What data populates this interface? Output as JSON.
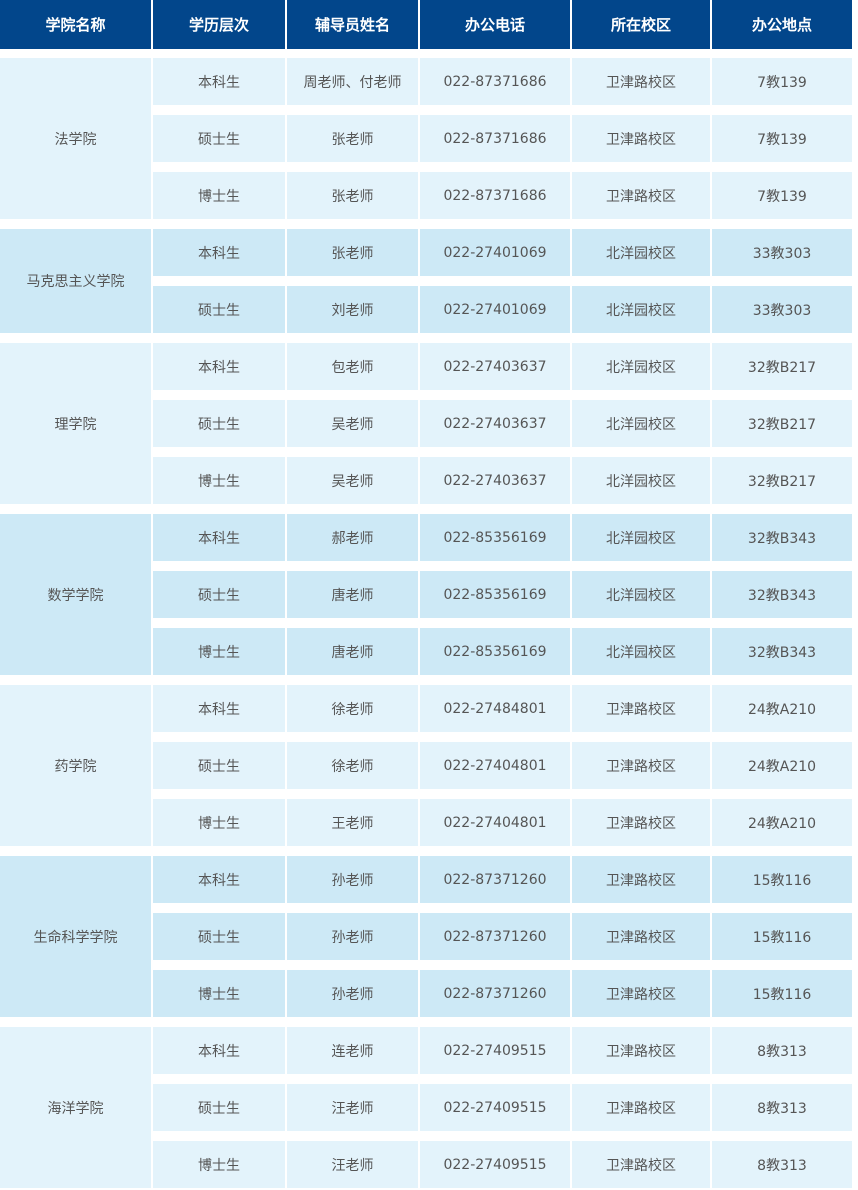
{
  "headers": [
    "学院名称",
    "学历层次",
    "辅导员姓名",
    "办公电话",
    "所在校区",
    "办公地点"
  ],
  "colors": {
    "header_bg": "#02468b",
    "row_light": "#e3f3fb",
    "row_dark": "#cde9f6"
  },
  "groups": [
    {
      "college": "法学院",
      "rows": [
        [
          "本科生",
          "周老师、付老师",
          "022-87371686",
          "卫津路校区",
          "7教139"
        ],
        [
          "硕士生",
          "张老师",
          "022-87371686",
          "卫津路校区",
          "7教139"
        ],
        [
          "博士生",
          "张老师",
          "022-87371686",
          "卫津路校区",
          "7教139"
        ]
      ]
    },
    {
      "college": "马克思主义学院",
      "rows": [
        [
          "本科生",
          "张老师",
          "022-27401069",
          "北洋园校区",
          "33教303"
        ],
        [
          "硕士生",
          "刘老师",
          "022-27401069",
          "北洋园校区",
          "33教303"
        ]
      ]
    },
    {
      "college": "理学院",
      "rows": [
        [
          "本科生",
          "包老师",
          "022-27403637",
          "北洋园校区",
          "32教B217"
        ],
        [
          "硕士生",
          "吴老师",
          "022-27403637",
          "北洋园校区",
          "32教B217"
        ],
        [
          "博士生",
          "吴老师",
          "022-27403637",
          "北洋园校区",
          "32教B217"
        ]
      ]
    },
    {
      "college": "数学学院",
      "rows": [
        [
          "本科生",
          "郝老师",
          "022-85356169",
          "北洋园校区",
          "32教B343"
        ],
        [
          "硕士生",
          "唐老师",
          "022-85356169",
          "北洋园校区",
          "32教B343"
        ],
        [
          "博士生",
          "唐老师",
          "022-85356169",
          "北洋园校区",
          "32教B343"
        ]
      ]
    },
    {
      "college": "药学院",
      "rows": [
        [
          "本科生",
          "徐老师",
          "022-27484801",
          "卫津路校区",
          "24教A210"
        ],
        [
          "硕士生",
          "徐老师",
          "022-27404801",
          "卫津路校区",
          "24教A210"
        ],
        [
          "博士生",
          "王老师",
          "022-27404801",
          "卫津路校区",
          "24教A210"
        ]
      ]
    },
    {
      "college": "生命科学学院",
      "rows": [
        [
          "本科生",
          "孙老师",
          "022-87371260",
          "卫津路校区",
          "15教116"
        ],
        [
          "硕士生",
          "孙老师",
          "022-87371260",
          "卫津路校区",
          "15教116"
        ],
        [
          "博士生",
          "孙老师",
          "022-87371260",
          "卫津路校区",
          "15教116"
        ]
      ]
    },
    {
      "college": "海洋学院",
      "rows": [
        [
          "本科生",
          "连老师",
          "022-27409515",
          "卫津路校区",
          "8教313"
        ],
        [
          "硕士生",
          "汪老师",
          "022-27409515",
          "卫津路校区",
          "8教313"
        ],
        [
          "博士生",
          "汪老师",
          "022-27409515",
          "卫津路校区",
          "8教313"
        ]
      ]
    }
  ]
}
